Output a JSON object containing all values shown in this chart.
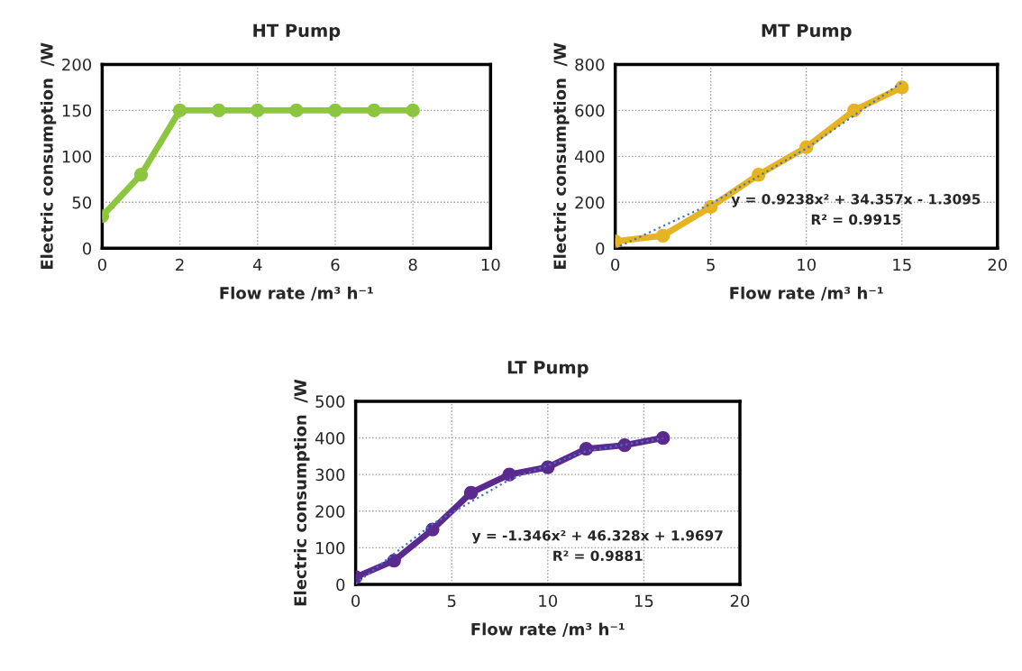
{
  "chart_data": [
    {
      "type": "line",
      "title": "HT Pump",
      "xlabel": "Flow rate /m³ h⁻¹",
      "ylabel": "Electric consumption  /W",
      "xlim": [
        0,
        10
      ],
      "xticks": [
        0,
        2,
        4,
        6,
        8,
        10
      ],
      "ylim": [
        0,
        200
      ],
      "yticks": [
        0,
        50,
        100,
        150,
        200
      ],
      "grid": true,
      "marker": "circle",
      "series": [
        {
          "color": "#8cc63f",
          "x": [
            0,
            1,
            2,
            3,
            4,
            5,
            6,
            7,
            8
          ],
          "values": [
            35,
            80,
            150,
            150,
            150,
            150,
            150,
            150,
            150
          ]
        }
      ]
    },
    {
      "type": "line",
      "title": "MT Pump",
      "xlabel": "Flow rate /m³ h⁻¹",
      "ylabel": "Electric consumption  /W",
      "xlim": [
        0,
        20
      ],
      "xticks": [
        0,
        5,
        10,
        15,
        20
      ],
      "ylim": [
        0,
        800
      ],
      "yticks": [
        0,
        200,
        400,
        600,
        800
      ],
      "grid": true,
      "marker": "circle",
      "annotations": [
        "y = 0.9238x² + 34.357x - 1.3095",
        "R² = 0.9915"
      ],
      "series": [
        {
          "color": "#e6b422",
          "x": [
            0,
            2.5,
            5,
            7.5,
            10,
            12.5,
            15
          ],
          "values": [
            30,
            55,
            180,
            320,
            440,
            600,
            700
          ]
        },
        {
          "color": "#4472c4",
          "x": [
            0,
            5,
            10,
            15
          ],
          "values": [
            0,
            193,
            434,
            722
          ],
          "marker": "none",
          "line_style": "dotted"
        }
      ]
    },
    {
      "type": "line",
      "title": "LT Pump",
      "xlabel": "Flow rate /m³ h⁻¹",
      "ylabel": "Electric consumption  /W",
      "xlim": [
        0,
        20
      ],
      "xticks": [
        0,
        5,
        10,
        15,
        20
      ],
      "ylim": [
        0,
        500
      ],
      "yticks": [
        0,
        100,
        200,
        300,
        400,
        500
      ],
      "grid": true,
      "marker": "circle",
      "annotations": [
        "y = -1.346x² + 46.328x + 1.9697",
        "R² = 0.9881"
      ],
      "series": [
        {
          "color": "#5b2a8e",
          "x": [
            0,
            2,
            4,
            6,
            8,
            10,
            12,
            14,
            16
          ],
          "values": [
            20,
            65,
            150,
            250,
            300,
            320,
            370,
            380,
            400
          ]
        },
        {
          "color": "#4472c4",
          "x": [
            0,
            4,
            8,
            12,
            16
          ],
          "values": [
            2,
            165,
            286,
            364,
            399
          ],
          "marker": "none",
          "line_style": "dotted"
        }
      ]
    }
  ]
}
